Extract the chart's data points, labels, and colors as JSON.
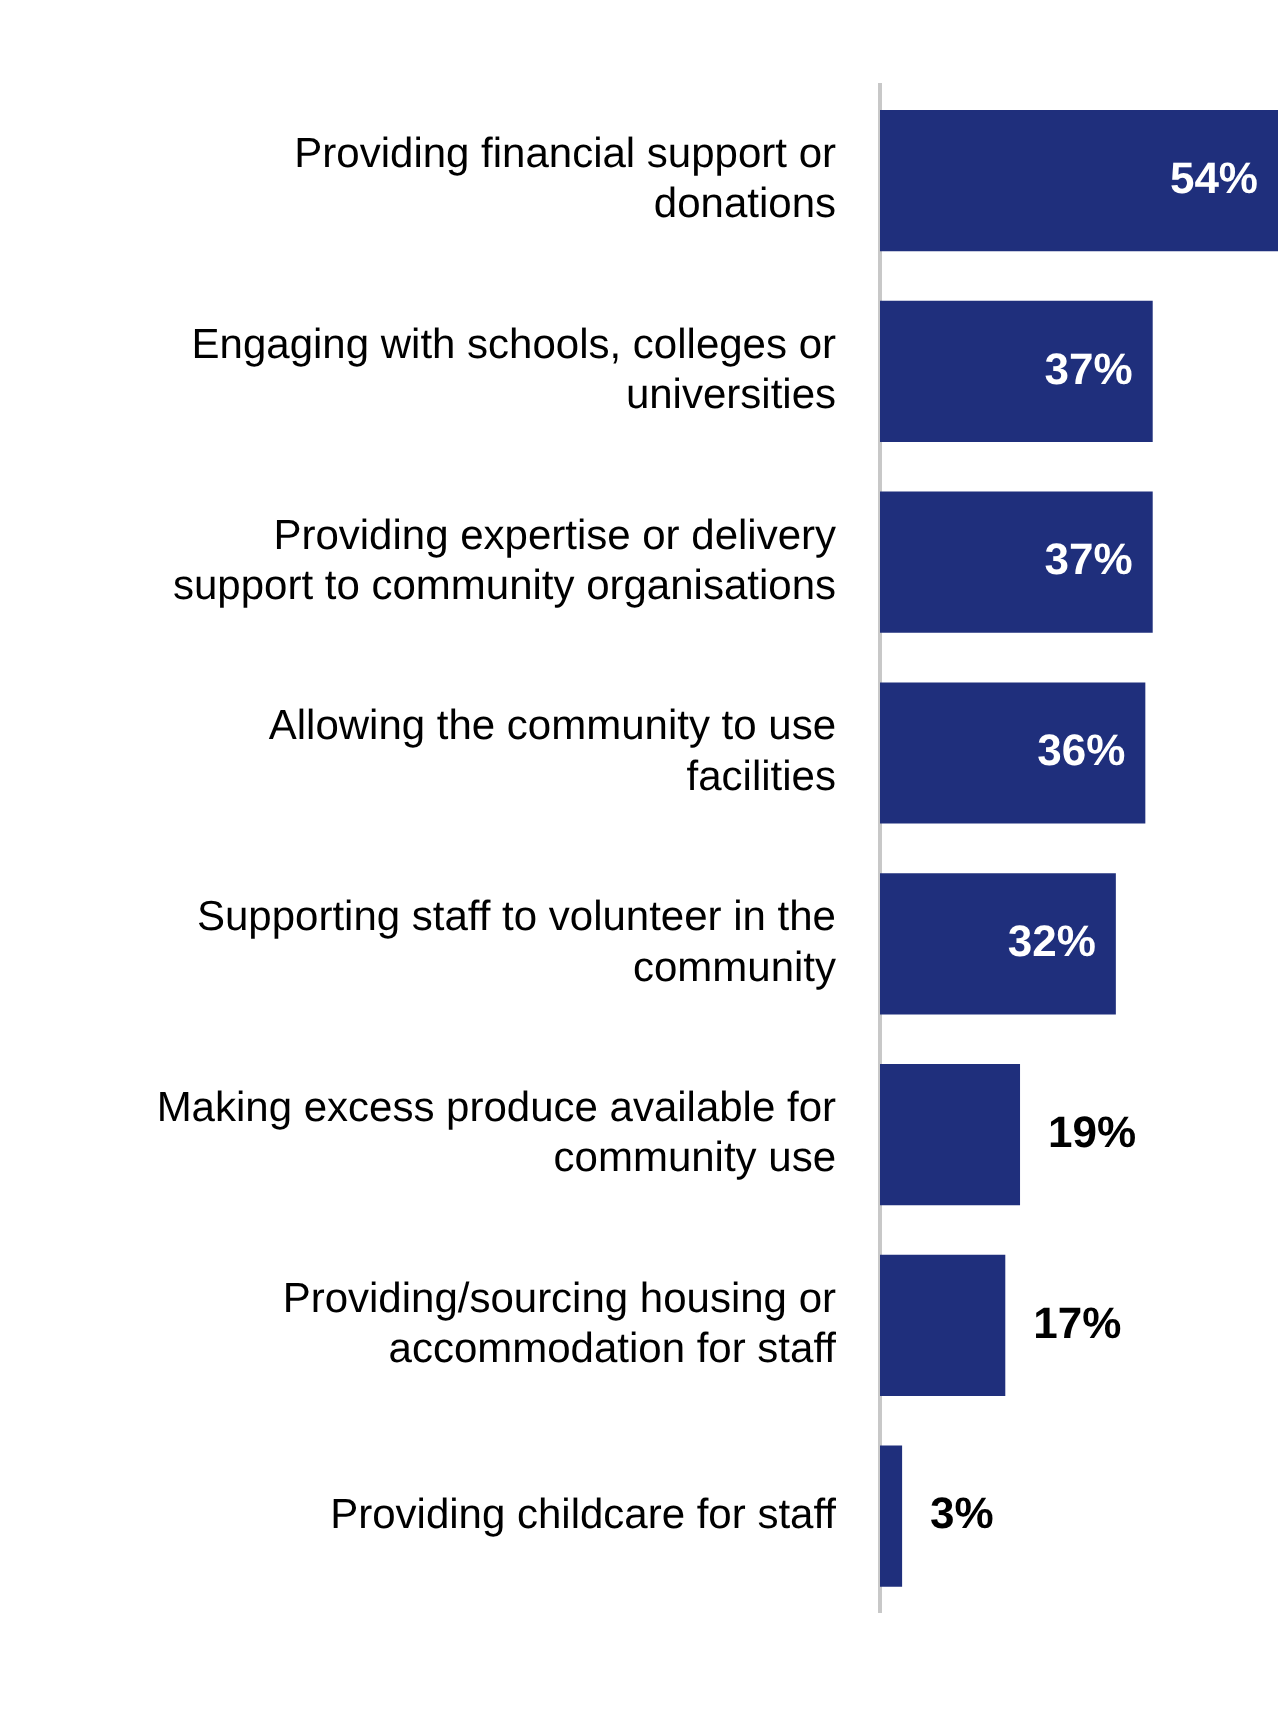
{
  "chart_data": {
    "type": "bar",
    "orientation": "horizontal",
    "categories": [
      "Providing financial support or donations",
      "Engaging with schools, colleges or universities",
      "Providing expertise or delivery support to community organisations",
      "Allowing the community to use facilities",
      "Supporting staff to volunteer in the community",
      "Making excess produce available for community use",
      "Providing/sourcing housing or accommodation for staff",
      "Providing childcare for staff"
    ],
    "values": [
      54,
      37,
      37,
      36,
      32,
      19,
      17,
      3
    ],
    "value_labels": [
      "54%",
      "37%",
      "37%",
      "36%",
      "32%",
      "19%",
      "17%",
      "3%"
    ],
    "color": "#1f2f7c",
    "xlim": [
      0,
      54
    ],
    "tick_labels": "y",
    "legend": false
  }
}
